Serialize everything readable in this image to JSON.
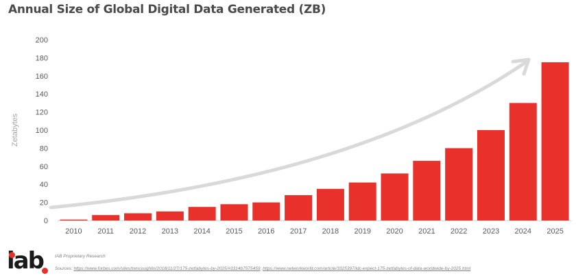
{
  "header": {
    "title": "Annual Size of Global Digital Data Generated (ZB)"
  },
  "chart_data": {
    "type": "bar",
    "title": "Annual Size of Global Digital Data Generated (ZB)",
    "xlabel": "",
    "ylabel": "Zetabytes",
    "categories": [
      "2010",
      "2011",
      "2012",
      "2013",
      "2014",
      "2015",
      "2016",
      "2017",
      "2018",
      "2019",
      "2020",
      "2021",
      "2022",
      "2023",
      "2024",
      "2025"
    ],
    "values": [
      1,
      6,
      8,
      10,
      15,
      18,
      20,
      28,
      35,
      42,
      52,
      66,
      80,
      100,
      130,
      175
    ],
    "ylim": [
      0,
      200
    ],
    "yticks": [
      0,
      20,
      40,
      60,
      80,
      100,
      120,
      140,
      160,
      180,
      200
    ],
    "grid": false,
    "legend": "none",
    "bar_color": "#e8312a",
    "annotations": [
      {
        "type": "trend-arrow",
        "description": "curved gray arrow rising from 2010 to 2025",
        "color": "#d9d9d9"
      }
    ]
  },
  "footer": {
    "logo": "iab",
    "note": "IAB Proprietary Research",
    "sources_label": "Sources:",
    "source_links": [
      "https://www.forbes.com/sites/tomcoughlin/2018/11/27/175-zettabytes-by-2025/#3314b7575459",
      "https://www.networkworld.com/article/3325397/idc-expect-175-zettabytes-of-data-worldwide-by-2025.html"
    ]
  }
}
